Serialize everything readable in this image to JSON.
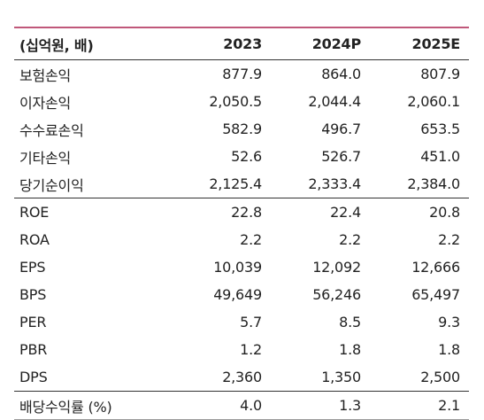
{
  "table": {
    "header": [
      "(십억원, 배)",
      "2023",
      "2024P",
      "2025E"
    ],
    "rows": [
      [
        "보험손익",
        "877.9",
        "864.0",
        "807.9"
      ],
      [
        "이자손익",
        "2,050.5",
        "2,044.4",
        "2,060.1"
      ],
      [
        "수수료손익",
        "582.9",
        "496.7",
        "653.5"
      ],
      [
        "기타손익",
        "52.6",
        "526.7",
        "451.0"
      ],
      [
        "당기순이익",
        "2,125.4",
        "2,333.4",
        "2,384.0"
      ],
      [
        "ROE",
        "22.8",
        "22.4",
        "20.8"
      ],
      [
        "ROA",
        "2.2",
        "2.2",
        "2.2"
      ],
      [
        "EPS",
        "10,039",
        "12,092",
        "12,666"
      ],
      [
        "BPS",
        "49,649",
        "56,246",
        "65,497"
      ],
      [
        "PER",
        "5.7",
        "8.5",
        "9.3"
      ],
      [
        "PBR",
        "1.2",
        "1.8",
        "1.8"
      ],
      [
        "DPS",
        "2,360",
        "1,350",
        "2,500"
      ],
      [
        "배당수익률 (%)",
        "4.0",
        "1.3",
        "2.1"
      ]
    ]
  },
  "colors": {
    "top_rule": "#c0587a",
    "text": "#222222",
    "rule": "#333333"
  }
}
